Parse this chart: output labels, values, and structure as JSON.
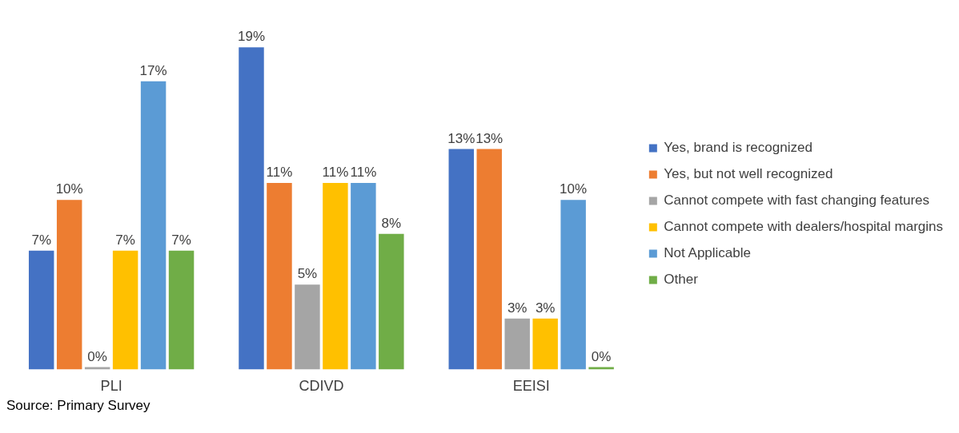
{
  "chart_data": {
    "type": "bar",
    "categories": [
      "PLI",
      "CDIVD",
      "EEISI"
    ],
    "series": [
      {
        "name": "Yes, brand is recognized",
        "color": "#4472c4",
        "values": [
          7,
          19,
          13
        ],
        "value_labels": [
          "7%",
          "19%",
          "13%"
        ]
      },
      {
        "name": "Yes, but not well recognized",
        "color": "#ed7d31",
        "values": [
          10,
          11,
          13
        ],
        "value_labels": [
          "10%",
          "11%",
          "13%"
        ]
      },
      {
        "name": "Cannot compete with fast changing features",
        "color": "#a5a5a5",
        "values": [
          0,
          5,
          3
        ],
        "value_labels": [
          "0%",
          "5%",
          "3%"
        ]
      },
      {
        "name": "Cannot compete with dealers/hospital margins",
        "color": "#ffc000",
        "values": [
          7,
          11,
          3
        ],
        "value_labels": [
          "7%",
          "11%",
          "3%"
        ]
      },
      {
        "name": "Not Applicable",
        "color": "#5b9bd5",
        "values": [
          17,
          11,
          10
        ],
        "value_labels": [
          "17%",
          "11%",
          "10%"
        ]
      },
      {
        "name": "Other",
        "color": "#70ad47",
        "values": [
          7,
          8,
          0
        ],
        "value_labels": [
          "7%",
          "8%",
          "0%"
        ]
      }
    ],
    "legend": "right",
    "grid": false,
    "tick_labels": "x",
    "annotations": [
      "Source: Primary Survey"
    ]
  }
}
